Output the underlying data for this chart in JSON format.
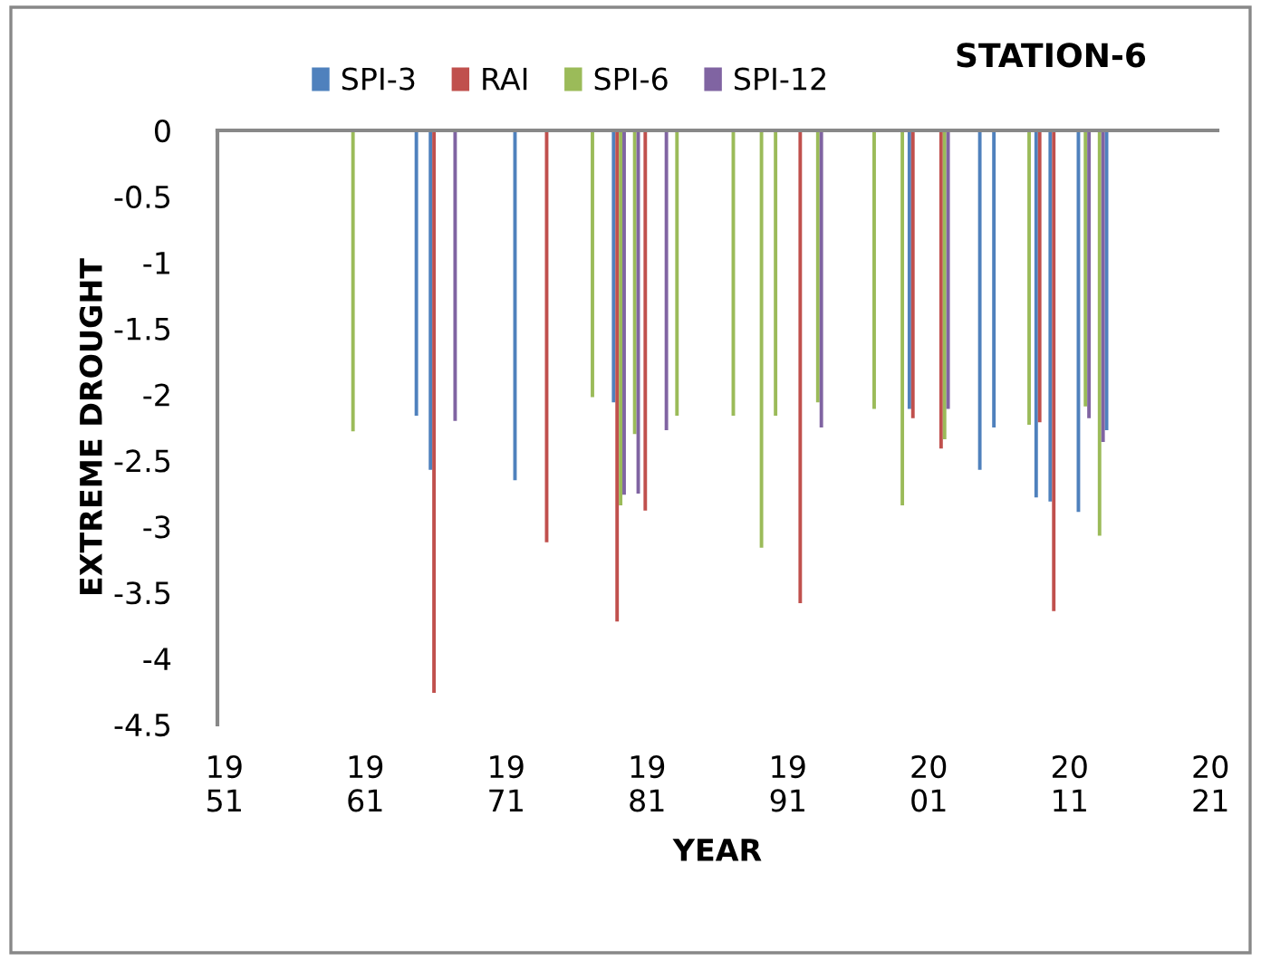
{
  "chart_data": {
    "type": "bar",
    "title": "STATION-6",
    "xlabel": "YEAR",
    "ylabel": "EXTREME DROUGHT",
    "categories": [
      "19\n51",
      null,
      null,
      null,
      null,
      null,
      null,
      null,
      null,
      null,
      "19\n61",
      null,
      null,
      null,
      null,
      null,
      null,
      null,
      null,
      null,
      "19\n71",
      null,
      null,
      null,
      null,
      null,
      null,
      null,
      null,
      null,
      "19\n81",
      null,
      null,
      null,
      null,
      null,
      null,
      null,
      null,
      null,
      "19\n91",
      null,
      null,
      null,
      null,
      null,
      null,
      null,
      null,
      null,
      "20\n01",
      null,
      null,
      null,
      null,
      null,
      null,
      null,
      null,
      null,
      "20\n11",
      null,
      null,
      null,
      null,
      null,
      null,
      null,
      null,
      null,
      "20\n21"
    ],
    "ylim": [
      -4.5,
      0
    ],
    "yticks": [
      0,
      -0.5,
      -1,
      -1.5,
      -2,
      -2.5,
      -3,
      -3.5,
      -4,
      -4.5
    ],
    "grid": false,
    "legend": "top",
    "series": [
      {
        "name": "SPI-3",
        "color": "#4f81bd",
        "values": [
          null,
          null,
          null,
          null,
          null,
          null,
          null,
          null,
          null,
          null,
          null,
          null,
          null,
          null,
          -2.16,
          -2.57,
          null,
          null,
          null,
          null,
          null,
          -2.65,
          null,
          null,
          null,
          null,
          null,
          null,
          -2.06,
          null,
          null,
          null,
          null,
          null,
          null,
          null,
          null,
          null,
          null,
          null,
          null,
          null,
          null,
          null,
          null,
          null,
          null,
          null,
          null,
          -2.11,
          null,
          null,
          null,
          null,
          -2.57,
          -2.25,
          null,
          null,
          -2.78,
          -2.81,
          null,
          -2.89,
          null,
          -2.27,
          null,
          null,
          null,
          null,
          null,
          null,
          null
        ]
      },
      {
        "name": "RAI",
        "color": "#c0504d",
        "values": [
          null,
          null,
          null,
          null,
          null,
          null,
          null,
          null,
          null,
          null,
          null,
          null,
          null,
          null,
          null,
          -4.26,
          null,
          null,
          null,
          null,
          null,
          null,
          null,
          -3.12,
          null,
          null,
          null,
          null,
          -3.72,
          null,
          -2.88,
          null,
          null,
          null,
          null,
          null,
          null,
          null,
          null,
          null,
          null,
          -3.58,
          null,
          null,
          null,
          null,
          null,
          null,
          null,
          -2.18,
          null,
          -2.41,
          null,
          null,
          null,
          null,
          null,
          null,
          -2.21,
          -3.64,
          null,
          null,
          null,
          null,
          null,
          null,
          null,
          null,
          null,
          null,
          null
        ]
      },
      {
        "name": "SPI-6",
        "color": "#9bbb59",
        "values": [
          null,
          null,
          null,
          null,
          null,
          null,
          null,
          null,
          null,
          -2.28,
          null,
          null,
          null,
          null,
          null,
          null,
          null,
          null,
          null,
          null,
          null,
          null,
          null,
          null,
          null,
          null,
          -2.02,
          null,
          -2.84,
          -2.3,
          null,
          null,
          -2.16,
          null,
          null,
          null,
          -2.16,
          null,
          -3.16,
          -2.16,
          null,
          null,
          -2.06,
          null,
          null,
          null,
          -2.11,
          null,
          -2.84,
          null,
          null,
          -2.34,
          null,
          null,
          null,
          null,
          null,
          -2.23,
          null,
          null,
          null,
          -2.09,
          -3.07,
          null,
          null,
          null,
          null,
          null,
          null,
          null,
          null
        ]
      },
      {
        "name": "SPI-12",
        "color": "#8064a2",
        "values": [
          null,
          null,
          null,
          null,
          null,
          null,
          null,
          null,
          null,
          null,
          null,
          null,
          null,
          null,
          null,
          null,
          -2.2,
          null,
          null,
          null,
          null,
          null,
          null,
          null,
          null,
          null,
          null,
          null,
          -2.76,
          -2.75,
          null,
          -2.27,
          null,
          null,
          null,
          null,
          null,
          null,
          null,
          null,
          null,
          null,
          -2.25,
          null,
          null,
          null,
          null,
          null,
          null,
          null,
          null,
          -2.11,
          null,
          null,
          null,
          null,
          null,
          null,
          null,
          null,
          null,
          -2.18,
          -2.36,
          null,
          null,
          null,
          null,
          null,
          null,
          null,
          null
        ]
      }
    ]
  }
}
